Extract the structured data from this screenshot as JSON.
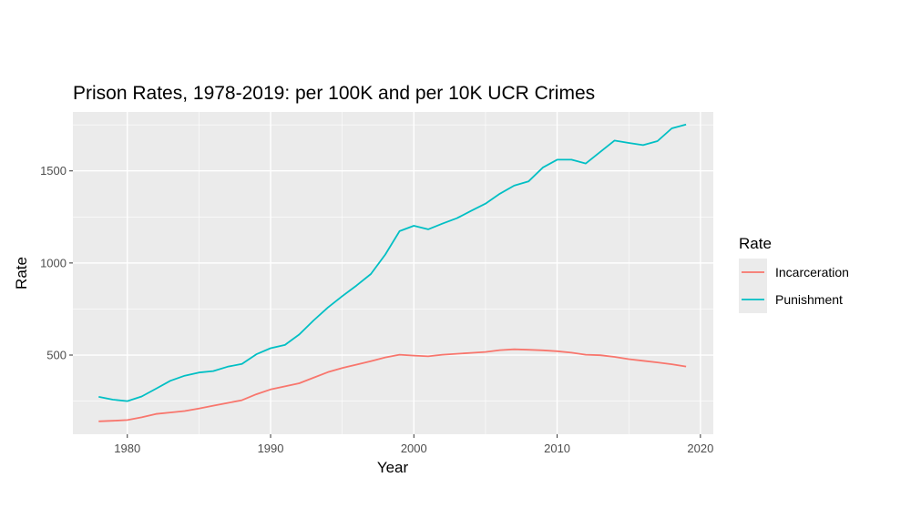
{
  "chart_data": {
    "type": "line",
    "title": "Prison Rates, 1978-2019: per 100K and per 10K UCR Crimes",
    "xlabel": "Year",
    "ylabel": "Rate",
    "xlim": [
      1976.2,
      2020.9
    ],
    "ylim": [
      70,
      1820
    ],
    "x_ticks": [
      1980,
      1990,
      2000,
      2010,
      2020
    ],
    "y_ticks": [
      500,
      1000,
      1500
    ],
    "grid": true,
    "legend": {
      "title": "Rate",
      "position": "right"
    },
    "x": [
      1978,
      1979,
      1980,
      1981,
      1982,
      1983,
      1984,
      1985,
      1986,
      1987,
      1988,
      1989,
      1990,
      1991,
      1992,
      1993,
      1994,
      1995,
      1996,
      1997,
      1998,
      1999,
      2000,
      2001,
      2002,
      2003,
      2004,
      2005,
      2006,
      2007,
      2008,
      2009,
      2010,
      2011,
      2012,
      2013,
      2014,
      2015,
      2016,
      2017,
      2018,
      2019
    ],
    "series": [
      {
        "name": "Incarceration",
        "color": "#F8766D",
        "values": [
          140,
          143,
          147,
          162,
          180,
          188,
          196,
          210,
          225,
          240,
          255,
          287,
          313,
          330,
          347,
          377,
          407,
          430,
          448,
          467,
          487,
          502,
          497,
          493,
          502,
          507,
          512,
          517,
          527,
          531,
          529,
          526,
          521,
          513,
          502,
          499,
          490,
          478,
          469,
          460,
          450,
          438
        ]
      },
      {
        "name": "Punishment",
        "color": "#00BFC4",
        "values": [
          273,
          258,
          250,
          275,
          317,
          360,
          388,
          405,
          413,
          437,
          452,
          504,
          537,
          555,
          612,
          688,
          758,
          820,
          878,
          940,
          1046,
          1173,
          1202,
          1183,
          1214,
          1243,
          1283,
          1322,
          1376,
          1420,
          1443,
          1518,
          1561,
          1561,
          1540,
          1603,
          1665,
          1652,
          1640,
          1662,
          1731,
          1752
        ]
      }
    ]
  }
}
